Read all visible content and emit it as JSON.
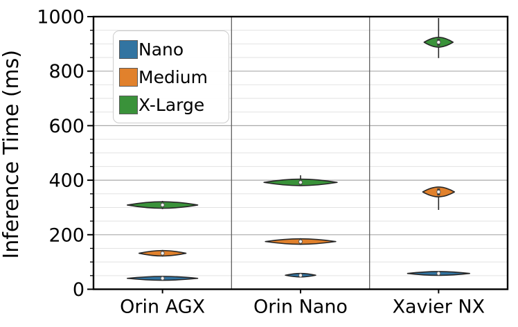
{
  "chart_data": {
    "type": "violin",
    "title": "",
    "ylabel": "Inference Time (ms)",
    "xlabel": "",
    "ylim": [
      0,
      1000
    ],
    "ytick_major_step": 200,
    "ytick_minor_step": 50,
    "ytick_labels": [
      "0",
      "200",
      "400",
      "600",
      "800",
      "1000"
    ],
    "grid": "horizontal major+minor, vertical category separators",
    "legend_position": "upper left",
    "categories": [
      "Orin AGX",
      "Orin Nano",
      "Xavier NX"
    ],
    "legend": [
      {
        "label": "Nano",
        "color": "#3274a1"
      },
      {
        "label": "Medium",
        "color": "#e1812c"
      },
      {
        "label": "X-Large",
        "color": "#3a923a"
      }
    ],
    "violins": [
      {
        "device": "Orin AGX",
        "model": "Nano",
        "median": 40,
        "body": [
          33,
          47
        ],
        "whisker": [
          33,
          47
        ],
        "width_frac": 0.51
      },
      {
        "device": "Orin AGX",
        "model": "Medium",
        "median": 132,
        "body": [
          122,
          142
        ],
        "whisker": [
          120,
          144
        ],
        "width_frac": 0.34
      },
      {
        "device": "Orin AGX",
        "model": "X-Large",
        "median": 309,
        "body": [
          297,
          321
        ],
        "whisker": [
          294,
          324
        ],
        "width_frac": 0.51
      },
      {
        "device": "Orin Nano",
        "model": "Nano",
        "median": 51,
        "body": [
          45,
          58
        ],
        "whisker": [
          45,
          58
        ],
        "width_frac": 0.22
      },
      {
        "device": "Orin Nano",
        "model": "Medium",
        "median": 175,
        "body": [
          165,
          185
        ],
        "whisker": [
          163,
          187
        ],
        "width_frac": 0.51
      },
      {
        "device": "Orin Nano",
        "model": "X-Large",
        "median": 392,
        "body": [
          380,
          404
        ],
        "whisker": [
          383,
          418
        ],
        "width_frac": 0.53
      },
      {
        "device": "Xavier NX",
        "model": "Nano",
        "median": 58,
        "body": [
          51,
          65
        ],
        "whisker": [
          51,
          65
        ],
        "width_frac": 0.45
      },
      {
        "device": "Xavier NX",
        "model": "Medium",
        "median": 357,
        "body": [
          339,
          375
        ],
        "whisker": [
          291,
          368
        ],
        "width_frac": 0.23
      },
      {
        "device": "Xavier NX",
        "model": "X-Large",
        "median": 906,
        "body": [
          888,
          924
        ],
        "whisker": [
          848,
          995
        ],
        "width_frac": 0.21
      }
    ]
  },
  "style_colors": {
    "minor_grid": "#e2e2e2",
    "major_grid": "#a9a9a9",
    "separator": "#5f5f5f",
    "spine": "#000000",
    "violin_outline": "#262626",
    "median_dot_fill": "#f0f0f0",
    "median_dot_edge": "#555555",
    "mini_box": "#3a3a3a"
  }
}
